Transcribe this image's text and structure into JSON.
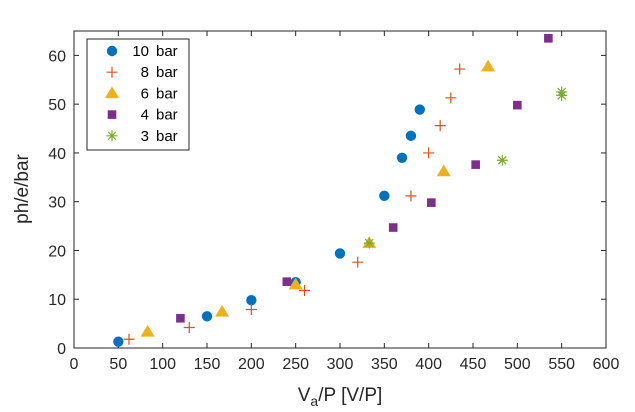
{
  "chart_data": {
    "type": "scatter",
    "title": "",
    "xlabel": "V_a/P [V/P]",
    "xlabel_main": "V",
    "xlabel_sub": "a",
    "xlabel_rest": "/P [V/P]",
    "ylabel": "ph/e/bar",
    "xlim": [
      0,
      600
    ],
    "ylim": [
      0,
      65
    ],
    "xticks": [
      0,
      50,
      100,
      150,
      200,
      250,
      300,
      350,
      400,
      450,
      500,
      550,
      600
    ],
    "yticks": [
      0,
      10,
      20,
      30,
      40,
      50,
      60
    ],
    "legend_position": "top-left",
    "series": [
      {
        "name": "10 bar",
        "label_num": "10",
        "label_unit": "bar",
        "marker": "circle",
        "color": "#0072BD",
        "points": [
          [
            50,
            1.3
          ],
          [
            150,
            6.5
          ],
          [
            200,
            9.8
          ],
          [
            250,
            13.5
          ],
          [
            300,
            19.4
          ],
          [
            350,
            31.2
          ],
          [
            370,
            39.0
          ],
          [
            380,
            43.5
          ],
          [
            390,
            48.9
          ]
        ]
      },
      {
        "name": "8 bar",
        "label_num": "8",
        "label_unit": "bar",
        "marker": "plus",
        "color": "#D95319",
        "points": [
          [
            62,
            1.8
          ],
          [
            130,
            4.2
          ],
          [
            200,
            7.9
          ],
          [
            260,
            11.8
          ],
          [
            320,
            17.6
          ],
          [
            380,
            31.2
          ],
          [
            400,
            40.0
          ],
          [
            413,
            45.6
          ],
          [
            425,
            51.3
          ],
          [
            435,
            57.2
          ]
        ]
      },
      {
        "name": "6 bar",
        "label_num": "6",
        "label_unit": "bar",
        "marker": "triangle",
        "color": "#EDB120",
        "points": [
          [
            83,
            3.3
          ],
          [
            167,
            7.4
          ],
          [
            250,
            13.0
          ],
          [
            333,
            21.5
          ],
          [
            417,
            36.2
          ],
          [
            467,
            57.7
          ]
        ]
      },
      {
        "name": "4 bar",
        "label_num": "4",
        "label_unit": "bar",
        "marker": "square",
        "color": "#7E2F8E",
        "points": [
          [
            120,
            6.1
          ],
          [
            240,
            13.6
          ],
          [
            360,
            24.7
          ],
          [
            403,
            29.8
          ],
          [
            453,
            37.6
          ],
          [
            500,
            49.8
          ],
          [
            535,
            63.5
          ]
        ]
      },
      {
        "name": "3 bar",
        "label_num": "3",
        "label_unit": "bar",
        "marker": "asterisk",
        "color": "#77AC30",
        "points": [
          [
            333,
            21.5
          ],
          [
            483,
            38.5
          ],
          [
            550,
            51.8
          ],
          [
            550,
            52.5
          ]
        ]
      }
    ]
  }
}
